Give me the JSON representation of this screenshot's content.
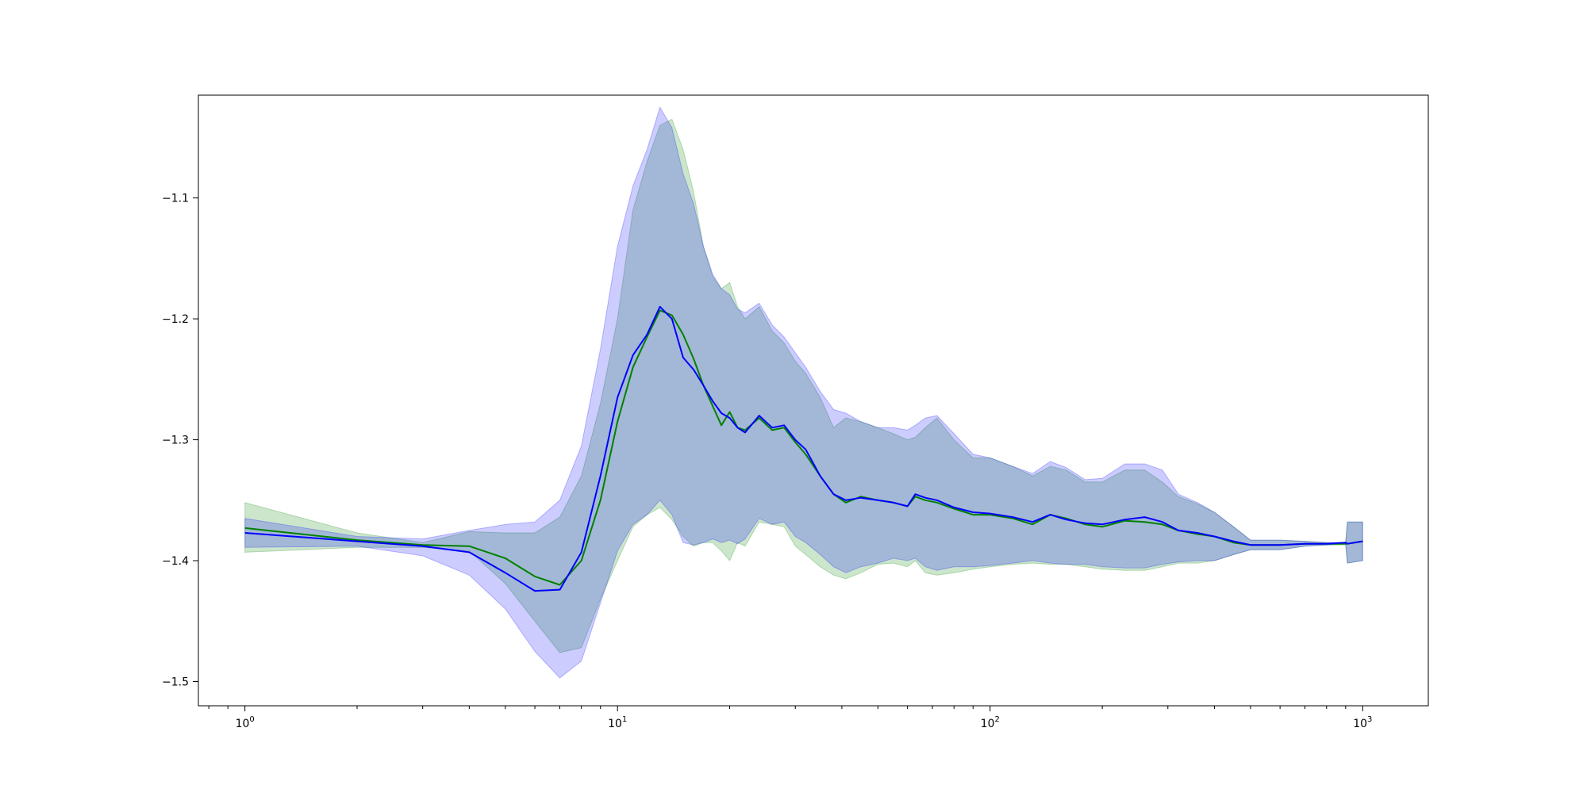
{
  "chart_data": {
    "type": "line",
    "title": "",
    "xlabel": "",
    "ylabel": "",
    "x_scale": "log",
    "xlim": [
      0.75,
      1500
    ],
    "ylim": [
      -1.52,
      -1.015
    ],
    "grid": false,
    "legend": "none",
    "x_major_ticks": [
      {
        "value": 1,
        "base": "10",
        "exp": "0"
      },
      {
        "value": 10,
        "base": "10",
        "exp": "1"
      },
      {
        "value": 100,
        "base": "10",
        "exp": "2"
      },
      {
        "value": 1000,
        "base": "10",
        "exp": "3"
      }
    ],
    "y_ticks": [
      {
        "value": -1.1,
        "label": "−1.1"
      },
      {
        "value": -1.2,
        "label": "−1.2"
      },
      {
        "value": -1.3,
        "label": "−1.3"
      },
      {
        "value": -1.4,
        "label": "−1.4"
      },
      {
        "value": -1.5,
        "label": "−1.5"
      }
    ],
    "series": [
      {
        "color": "#008000",
        "band_color": "#008000",
        "band_alpha": 0.2,
        "points": [
          [
            1,
            -1.373,
            -1.352,
            -1.393
          ],
          [
            2,
            -1.383,
            -1.377,
            -1.389
          ],
          [
            3,
            -1.387,
            -1.385,
            -1.389
          ],
          [
            4,
            -1.388,
            -1.376,
            -1.392
          ],
          [
            5,
            -1.398,
            -1.377,
            -1.419
          ],
          [
            6,
            -1.413,
            -1.377,
            -1.45
          ],
          [
            7,
            -1.42,
            -1.364,
            -1.476
          ],
          [
            8,
            -1.4,
            -1.33,
            -1.472
          ],
          [
            9,
            -1.35,
            -1.27,
            -1.432
          ],
          [
            10,
            -1.285,
            -1.2,
            -1.4
          ],
          [
            11,
            -1.24,
            -1.11,
            -1.372
          ],
          [
            12,
            -1.215,
            -1.07,
            -1.362
          ],
          [
            13,
            -1.193,
            -1.04,
            -1.356
          ],
          [
            14,
            -1.197,
            -1.035,
            -1.366
          ],
          [
            15,
            -1.213,
            -1.06,
            -1.38
          ],
          [
            16,
            -1.233,
            -1.095,
            -1.388
          ],
          [
            17,
            -1.255,
            -1.14,
            -1.385
          ],
          [
            18,
            -1.272,
            -1.165,
            -1.385
          ],
          [
            19,
            -1.288,
            -1.175,
            -1.392
          ],
          [
            20,
            -1.277,
            -1.17,
            -1.4
          ],
          [
            21,
            -1.29,
            -1.19,
            -1.385
          ],
          [
            22,
            -1.292,
            -1.2,
            -1.388
          ],
          [
            24,
            -1.282,
            -1.19,
            -1.368
          ],
          [
            26,
            -1.292,
            -1.21,
            -1.37
          ],
          [
            28,
            -1.29,
            -1.22,
            -1.372
          ],
          [
            30,
            -1.302,
            -1.235,
            -1.388
          ],
          [
            32,
            -1.312,
            -1.245,
            -1.395
          ],
          [
            35,
            -1.33,
            -1.265,
            -1.405
          ],
          [
            38,
            -1.345,
            -1.29,
            -1.412
          ],
          [
            41,
            -1.352,
            -1.282,
            -1.415
          ],
          [
            45,
            -1.347,
            -1.285,
            -1.41
          ],
          [
            50,
            -1.35,
            -1.29,
            -1.403
          ],
          [
            55,
            -1.352,
            -1.295,
            -1.402
          ],
          [
            60,
            -1.355,
            -1.3,
            -1.405
          ],
          [
            63,
            -1.347,
            -1.298,
            -1.4
          ],
          [
            67,
            -1.35,
            -1.29,
            -1.41
          ],
          [
            72,
            -1.352,
            -1.282,
            -1.412
          ],
          [
            80,
            -1.357,
            -1.3,
            -1.41
          ],
          [
            90,
            -1.362,
            -1.315,
            -1.407
          ],
          [
            100,
            -1.362,
            -1.315,
            -1.405
          ],
          [
            115,
            -1.365,
            -1.322,
            -1.403
          ],
          [
            130,
            -1.37,
            -1.33,
            -1.402
          ],
          [
            145,
            -1.362,
            -1.322,
            -1.403
          ],
          [
            160,
            -1.365,
            -1.325,
            -1.403
          ],
          [
            180,
            -1.37,
            -1.335,
            -1.405
          ],
          [
            200,
            -1.372,
            -1.335,
            -1.407
          ],
          [
            230,
            -1.367,
            -1.325,
            -1.408
          ],
          [
            260,
            -1.368,
            -1.325,
            -1.408
          ],
          [
            290,
            -1.37,
            -1.335,
            -1.405
          ],
          [
            320,
            -1.375,
            -1.347,
            -1.402
          ],
          [
            360,
            -1.378,
            -1.353,
            -1.402
          ],
          [
            400,
            -1.38,
            -1.36,
            -1.4
          ],
          [
            450,
            -1.385,
            -1.372,
            -1.395
          ],
          [
            500,
            -1.387,
            -1.383,
            -1.391
          ],
          [
            600,
            -1.387,
            -1.383,
            -1.391
          ],
          [
            700,
            -1.386,
            -1.384,
            -1.388
          ],
          [
            800,
            -1.386,
            -1.385,
            -1.387
          ],
          [
            900,
            -1.386,
            -1.385,
            -1.387
          ],
          [
            910,
            -1.386,
            -1.368,
            -1.402
          ],
          [
            1000,
            -1.384,
            -1.368,
            -1.4
          ]
        ]
      },
      {
        "color": "#0000ff",
        "band_color": "#0000ff",
        "band_alpha": 0.2,
        "points": [
          [
            1,
            -1.377,
            -1.365,
            -1.389
          ],
          [
            2,
            -1.384,
            -1.38,
            -1.388
          ],
          [
            3,
            -1.388,
            -1.382,
            -1.396
          ],
          [
            4,
            -1.393,
            -1.375,
            -1.412
          ],
          [
            5,
            -1.41,
            -1.37,
            -1.44
          ],
          [
            6,
            -1.425,
            -1.368,
            -1.475
          ],
          [
            7,
            -1.424,
            -1.35,
            -1.497
          ],
          [
            8,
            -1.393,
            -1.305,
            -1.483
          ],
          [
            9,
            -1.33,
            -1.225,
            -1.435
          ],
          [
            10,
            -1.265,
            -1.14,
            -1.392
          ],
          [
            11,
            -1.23,
            -1.09,
            -1.37
          ],
          [
            12,
            -1.213,
            -1.06,
            -1.362
          ],
          [
            13,
            -1.19,
            -1.025,
            -1.35
          ],
          [
            14,
            -1.2,
            -1.042,
            -1.362
          ],
          [
            15,
            -1.232,
            -1.08,
            -1.385
          ],
          [
            16,
            -1.242,
            -1.105,
            -1.387
          ],
          [
            17,
            -1.255,
            -1.14,
            -1.385
          ],
          [
            18,
            -1.268,
            -1.163,
            -1.382
          ],
          [
            19,
            -1.278,
            -1.175,
            -1.385
          ],
          [
            20,
            -1.282,
            -1.18,
            -1.383
          ],
          [
            21,
            -1.29,
            -1.192,
            -1.386
          ],
          [
            22,
            -1.294,
            -1.195,
            -1.382
          ],
          [
            24,
            -1.28,
            -1.187,
            -1.365
          ],
          [
            26,
            -1.29,
            -1.205,
            -1.37
          ],
          [
            28,
            -1.288,
            -1.215,
            -1.368
          ],
          [
            30,
            -1.3,
            -1.228,
            -1.38
          ],
          [
            32,
            -1.308,
            -1.24,
            -1.385
          ],
          [
            35,
            -1.33,
            -1.26,
            -1.395
          ],
          [
            38,
            -1.345,
            -1.275,
            -1.405
          ],
          [
            41,
            -1.35,
            -1.278,
            -1.41
          ],
          [
            45,
            -1.348,
            -1.285,
            -1.405
          ],
          [
            50,
            -1.35,
            -1.29,
            -1.402
          ],
          [
            55,
            -1.352,
            -1.29,
            -1.398
          ],
          [
            60,
            -1.355,
            -1.292,
            -1.4
          ],
          [
            63,
            -1.345,
            -1.288,
            -1.398
          ],
          [
            67,
            -1.348,
            -1.282,
            -1.405
          ],
          [
            72,
            -1.35,
            -1.28,
            -1.408
          ],
          [
            80,
            -1.356,
            -1.295,
            -1.405
          ],
          [
            90,
            -1.36,
            -1.312,
            -1.405
          ],
          [
            100,
            -1.361,
            -1.315,
            -1.404
          ],
          [
            115,
            -1.364,
            -1.322,
            -1.402
          ],
          [
            130,
            -1.368,
            -1.328,
            -1.4
          ],
          [
            145,
            -1.362,
            -1.318,
            -1.402
          ],
          [
            160,
            -1.366,
            -1.323,
            -1.403
          ],
          [
            180,
            -1.369,
            -1.333,
            -1.403
          ],
          [
            200,
            -1.37,
            -1.332,
            -1.405
          ],
          [
            230,
            -1.366,
            -1.32,
            -1.406
          ],
          [
            260,
            -1.364,
            -1.32,
            -1.406
          ],
          [
            290,
            -1.368,
            -1.325,
            -1.403
          ],
          [
            320,
            -1.375,
            -1.345,
            -1.401
          ],
          [
            360,
            -1.377,
            -1.352,
            -1.4
          ],
          [
            400,
            -1.38,
            -1.36,
            -1.4
          ],
          [
            450,
            -1.384,
            -1.372,
            -1.395
          ],
          [
            500,
            -1.387,
            -1.383,
            -1.391
          ],
          [
            600,
            -1.387,
            -1.383,
            -1.391
          ],
          [
            700,
            -1.386,
            -1.384,
            -1.388
          ],
          [
            800,
            -1.386,
            -1.385,
            -1.387
          ],
          [
            900,
            -1.385,
            -1.385,
            -1.386
          ],
          [
            910,
            -1.386,
            -1.368,
            -1.402
          ],
          [
            1000,
            -1.384,
            -1.368,
            -1.4
          ]
        ]
      }
    ]
  }
}
